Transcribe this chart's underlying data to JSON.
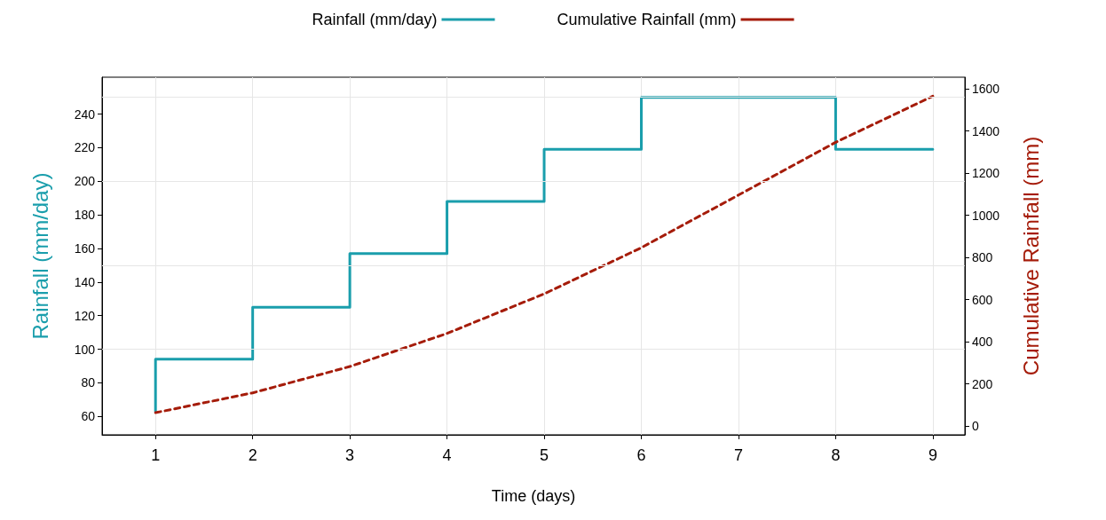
{
  "chart_data": {
    "type": "line",
    "xlabel": "Time (days)",
    "ylabel": "Rainfall (mm/day)",
    "y2label": "Cumulative Rainfall (mm)",
    "xlim": [
      0.45,
      9.33
    ],
    "xticks": [
      1,
      2,
      3,
      4,
      5,
      6,
      7,
      8,
      9
    ],
    "ylim": [
      49,
      262
    ],
    "yticks": [
      60,
      80,
      100,
      120,
      140,
      160,
      180,
      200,
      220,
      240
    ],
    "y2lim": [
      -42,
      1655
    ],
    "y2ticks": [
      0,
      200,
      400,
      600,
      800,
      1000,
      1200,
      1400,
      1600
    ],
    "grid": "x",
    "legend": "top",
    "marker": "none",
    "ref_lines": [
      {
        "axis": "y",
        "value": 100,
        "color": "#e6e6e6"
      },
      {
        "axis": "y",
        "value": 150,
        "color": "#e6e6e6"
      },
      {
        "axis": "y",
        "value": 200,
        "color": "#e6e6e6"
      },
      {
        "axis": "y",
        "value": 250,
        "color": "#e6e6e6"
      }
    ],
    "series": [
      {
        "name": "Rainfall (mm/day)",
        "type": "step",
        "color": "#1a9eac",
        "line_style": "solid",
        "x": [
          1,
          1,
          2,
          3,
          4,
          5,
          6,
          7,
          8,
          9
        ],
        "values": [
          63,
          94,
          125,
          157,
          188,
          219,
          250,
          250,
          219,
          219
        ]
      },
      {
        "name": "Cumulative Rainfall (mm)",
        "type": "line",
        "axis": "y2",
        "color": "#a51c0a",
        "line_style": "dashed",
        "x": [
          1,
          2,
          3,
          4,
          5,
          6,
          7,
          8,
          9
        ],
        "values": [
          63,
          157,
          282,
          439,
          627,
          846,
          1096,
          1346,
          1565
        ]
      }
    ]
  }
}
